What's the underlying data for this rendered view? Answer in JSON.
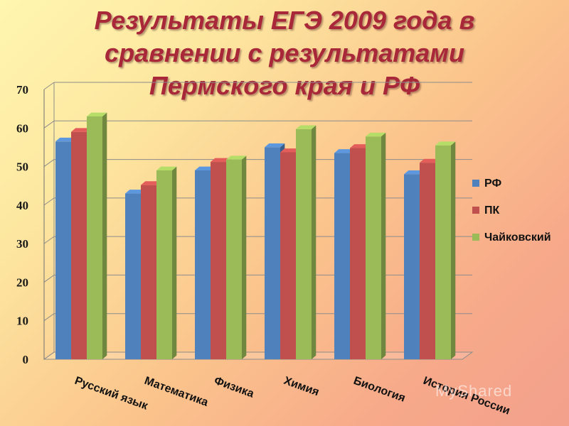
{
  "title": "Результаты ЕГЭ 2009 года в сравнении с результатами Пермского края и РФ",
  "watermark": "MyShared",
  "colors": {
    "title": "#a8283a",
    "РФ": "#4f81bd",
    "ПК": "#c0504d",
    "Чайковский": "#9bbb59"
  },
  "chart_data": {
    "type": "bar",
    "style": "3d-clustered-column",
    "categories": [
      "Русский язык",
      "Математика",
      "Физика",
      "Химия",
      "Биология",
      "История России"
    ],
    "series": [
      {
        "name": "РФ",
        "values": [
          56.5,
          43,
          49,
          55,
          53.5,
          48
        ]
      },
      {
        "name": "ПК",
        "values": [
          59,
          45.2,
          51.2,
          53.7,
          54.8,
          51
        ]
      },
      {
        "name": "Чайковский",
        "values": [
          63,
          49,
          51.8,
          59.7,
          57.8,
          55.5
        ]
      }
    ],
    "ylim": [
      0,
      70
    ],
    "yticks": [
      "0",
      "10",
      "20",
      "30",
      "40",
      "50",
      "60",
      "70"
    ],
    "grid": true,
    "legend_position": "right"
  }
}
